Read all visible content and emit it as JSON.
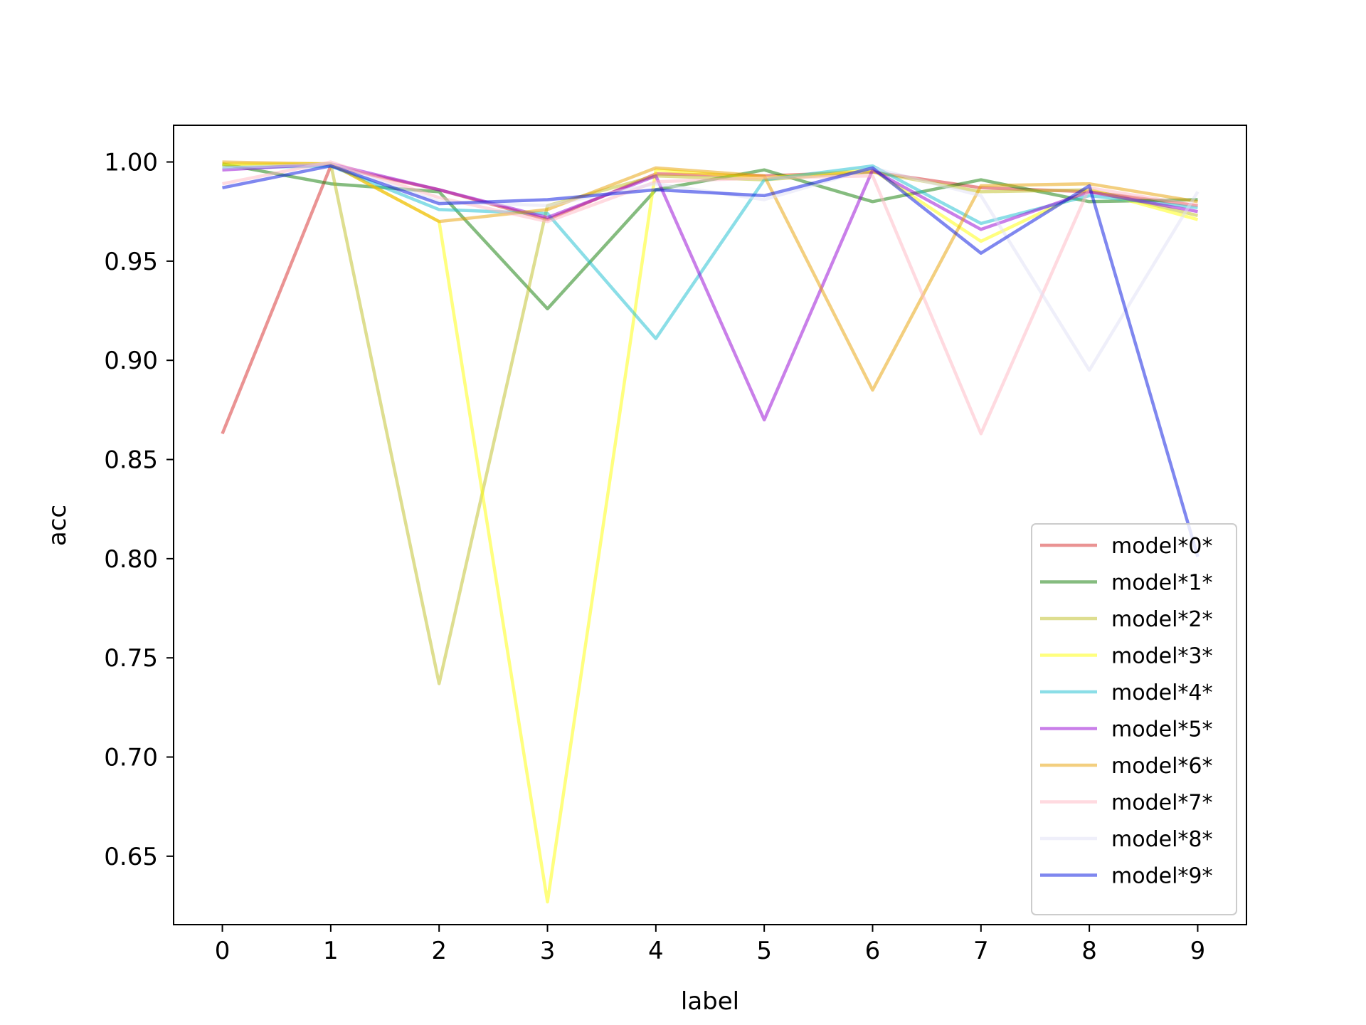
{
  "chart_data": {
    "type": "line",
    "title": "",
    "xlabel": "label",
    "ylabel": "acc",
    "x": [
      0,
      1,
      2,
      3,
      4,
      5,
      6,
      7,
      8,
      9
    ],
    "x_ticks": [
      "0",
      "1",
      "2",
      "3",
      "4",
      "5",
      "6",
      "7",
      "8",
      "9"
    ],
    "xlim": [
      -0.45,
      9.45
    ],
    "y_ticks": [
      "0.65",
      "0.70",
      "0.75",
      "0.80",
      "0.85",
      "0.90",
      "0.95",
      "1.00"
    ],
    "ylim": [
      0.6155,
      1.0185
    ],
    "grid": false,
    "legend_position": "lower-right",
    "line_alpha": 0.5,
    "series": [
      {
        "name": "model*0*",
        "color": "#d62728",
        "values": [
          0.863,
          0.998,
          0.986,
          0.971,
          0.994,
          0.993,
          0.995,
          0.987,
          0.985,
          0.978
        ]
      },
      {
        "name": "model*1*",
        "color": "#0b7a00",
        "values": [
          0.999,
          0.989,
          0.985,
          0.926,
          0.986,
          0.996,
          0.98,
          0.991,
          0.98,
          0.981
        ]
      },
      {
        "name": "model*2*",
        "color": "#bdbd22",
        "values": [
          0.998,
          0.999,
          0.737,
          0.978,
          0.993,
          0.991,
          0.995,
          0.985,
          0.986,
          0.973
        ]
      },
      {
        "name": "model*3*",
        "color": "#ffff00",
        "values": [
          0.999,
          0.999,
          0.97,
          0.627,
          0.996,
          0.992,
          0.996,
          0.96,
          0.986,
          0.971
        ]
      },
      {
        "name": "model*4*",
        "color": "#17becf",
        "values": [
          0.997,
          0.998,
          0.976,
          0.974,
          0.911,
          0.991,
          0.998,
          0.969,
          0.983,
          0.977
        ]
      },
      {
        "name": "model*5*",
        "color": "#9400d3",
        "values": [
          0.996,
          0.999,
          0.986,
          0.972,
          0.993,
          0.87,
          0.996,
          0.966,
          0.985,
          0.975
        ]
      },
      {
        "name": "model*6*",
        "color": "#e8a000",
        "values": [
          1.0,
          0.999,
          0.97,
          0.976,
          0.997,
          0.993,
          0.885,
          0.988,
          0.989,
          0.98
        ]
      },
      {
        "name": "model*7*",
        "color": "#ffb6c1",
        "values": [
          0.989,
          1.0,
          0.982,
          0.97,
          0.99,
          0.992,
          0.993,
          0.863,
          0.987,
          0.978
        ]
      },
      {
        "name": "model*8*",
        "color": "#e0e0f5",
        "values": [
          0.997,
          0.999,
          0.98,
          0.978,
          0.989,
          0.981,
          0.997,
          0.983,
          0.895,
          0.985
        ]
      },
      {
        "name": "model*9*",
        "color": "#0010e0",
        "values": [
          0.987,
          0.998,
          0.979,
          0.981,
          0.986,
          0.983,
          0.997,
          0.954,
          0.988,
          0.801
        ]
      }
    ]
  }
}
